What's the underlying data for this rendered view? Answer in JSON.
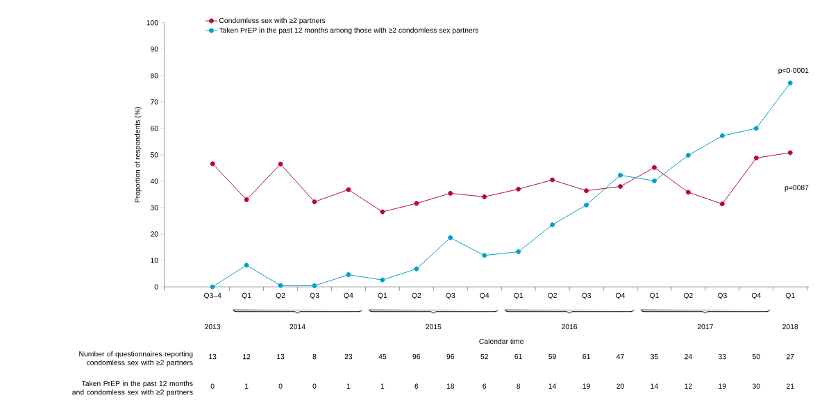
{
  "chart_data": {
    "type": "line",
    "ylabel": "Proportion of respondents (%)",
    "categories": [
      "Q3–4",
      "Q1",
      "Q2",
      "Q3",
      "Q4",
      "Q1",
      "Q2",
      "Q3",
      "Q4",
      "Q1",
      "Q2",
      "Q3",
      "Q4",
      "Q1",
      "Q2",
      "Q3",
      "Q4",
      "Q1"
    ],
    "series": [
      {
        "name": "Condomless sex with ≥2 partners",
        "color": "#b5083c",
        "values": [
          46.6,
          33.0,
          46.5,
          32.2,
          36.8,
          28.4,
          31.6,
          35.4,
          34.1,
          37.0,
          40.5,
          36.4,
          38.0,
          45.2,
          35.8,
          31.4,
          48.8,
          50.8
        ]
      },
      {
        "name": "Taken PrEP in the past 12 months among those with ≥2 condomless sex partners",
        "color": "#00a0c8",
        "values": [
          0,
          8.2,
          0.5,
          0.4,
          4.6,
          2.6,
          6.8,
          18.6,
          11.9,
          13.3,
          23.5,
          31.0,
          42.3,
          40.1,
          49.8,
          57.2,
          60.0,
          77.2
        ]
      }
    ],
    "ylim": [
      0,
      100
    ],
    "yticks": [
      0,
      10,
      20,
      30,
      40,
      50,
      60,
      70,
      80,
      90,
      100
    ],
    "grid": false,
    "legend": "top left",
    "marker": "circle",
    "line_style": "solid",
    "annotations": [
      "p<0·0001",
      "p=0087",
      "2013",
      "2014",
      "2015",
      "2016",
      "2017",
      "2018",
      "Number of questionnaires reporting condomless sex with ≥2 partners",
      "13",
      "12",
      "13",
      "8",
      "23",
      "45",
      "96",
      "96",
      "52",
      "61",
      "59",
      "61",
      "47",
      "35",
      "24",
      "33",
      "50",
      "27",
      "Taken PrEP in the past 12 months and condomless sex with ≥2 partners",
      "0",
      "1",
      "0",
      "0",
      "1",
      "1",
      "6",
      "18",
      "6",
      "8",
      "14",
      "19",
      "20",
      "14",
      "12",
      "19",
      "30",
      "21",
      "Calendar time"
    ]
  }
}
